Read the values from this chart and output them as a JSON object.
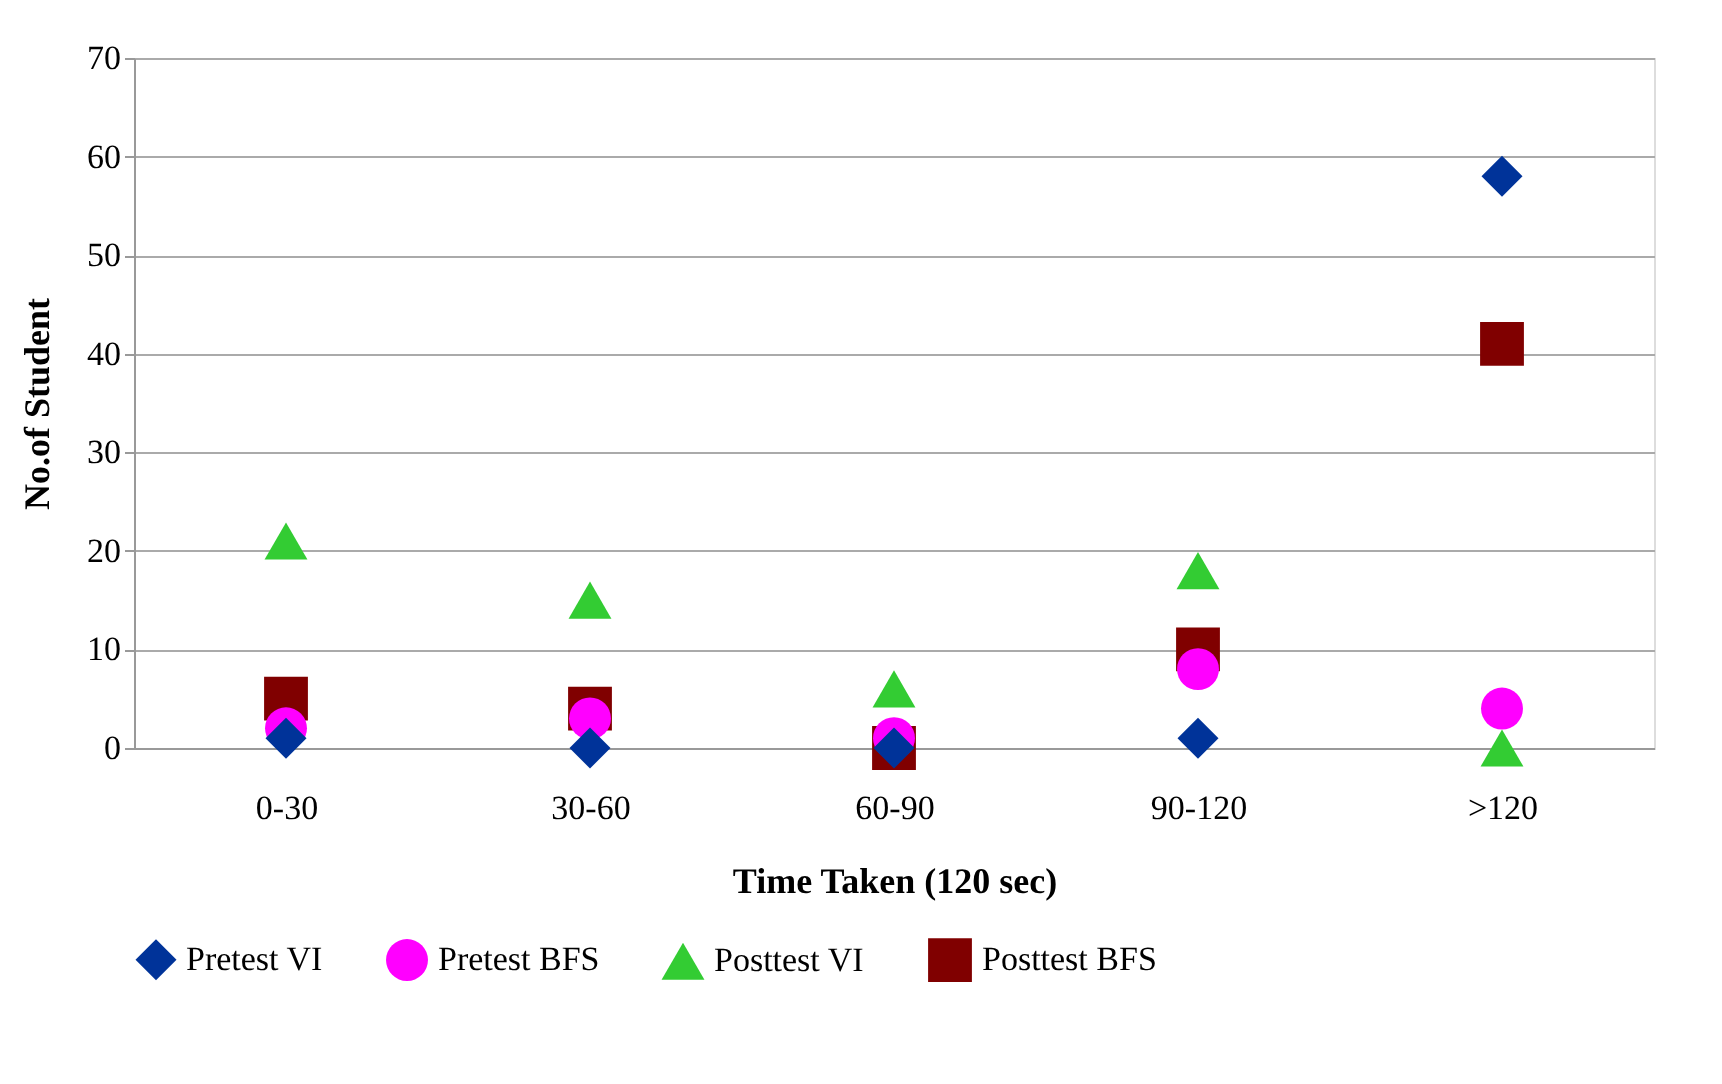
{
  "chart_data": {
    "type": "scatter",
    "xlabel": "Time Taken (120 sec)",
    "ylabel": "No.of Student",
    "categories": [
      "0-30",
      "30-60",
      "60-90",
      "90-120",
      ">120"
    ],
    "series": [
      {
        "name": "Pretest VI",
        "color": "#003399",
        "marker": "diamond",
        "values": [
          1,
          0,
          0,
          1,
          58
        ]
      },
      {
        "name": "Pretest BFS",
        "color": "#ff00ff",
        "marker": "circle",
        "values": [
          2,
          3,
          1,
          8,
          4
        ]
      },
      {
        "name": "Posttest VI",
        "color": "#33cc33",
        "marker": "triangle",
        "values": [
          21,
          15,
          6,
          18,
          0
        ]
      },
      {
        "name": "Posttest BFS",
        "color": "#800000",
        "marker": "square",
        "values": [
          5,
          4,
          0,
          10,
          41
        ]
      }
    ],
    "ylim": [
      0,
      70
    ],
    "yticks": [
      0,
      10,
      20,
      30,
      40,
      50,
      60,
      70
    ],
    "grid": "y",
    "legend": "bottom"
  }
}
